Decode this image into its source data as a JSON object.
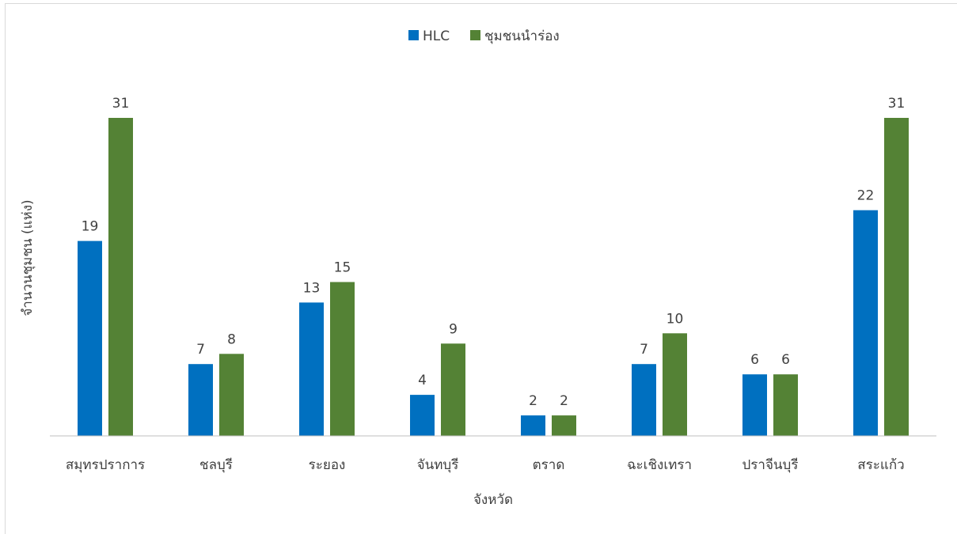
{
  "chart_data": {
    "type": "bar",
    "title": "",
    "xlabel": "จังหวัด",
    "ylabel": "จำนวนชุมชน (แห่ง)",
    "categories": [
      "สมุทรปราการ",
      "ชลบุรี",
      "ระยอง",
      "จันทบุรี",
      "ตราด",
      "ฉะเชิงเทรา",
      "ปราจีนบุรี",
      "สระแก้ว"
    ],
    "series": [
      {
        "name": "HLC",
        "color": "#0070c0",
        "values": [
          19,
          7,
          13,
          4,
          2,
          7,
          6,
          22
        ]
      },
      {
        "name": "ชุมชนนำร่อง",
        "color": "#548235",
        "values": [
          31,
          8,
          15,
          9,
          2,
          10,
          6,
          31
        ]
      }
    ],
    "ylim": [
      0,
      31
    ],
    "grid": false,
    "legend_position": "top-center",
    "data_labels": true
  }
}
